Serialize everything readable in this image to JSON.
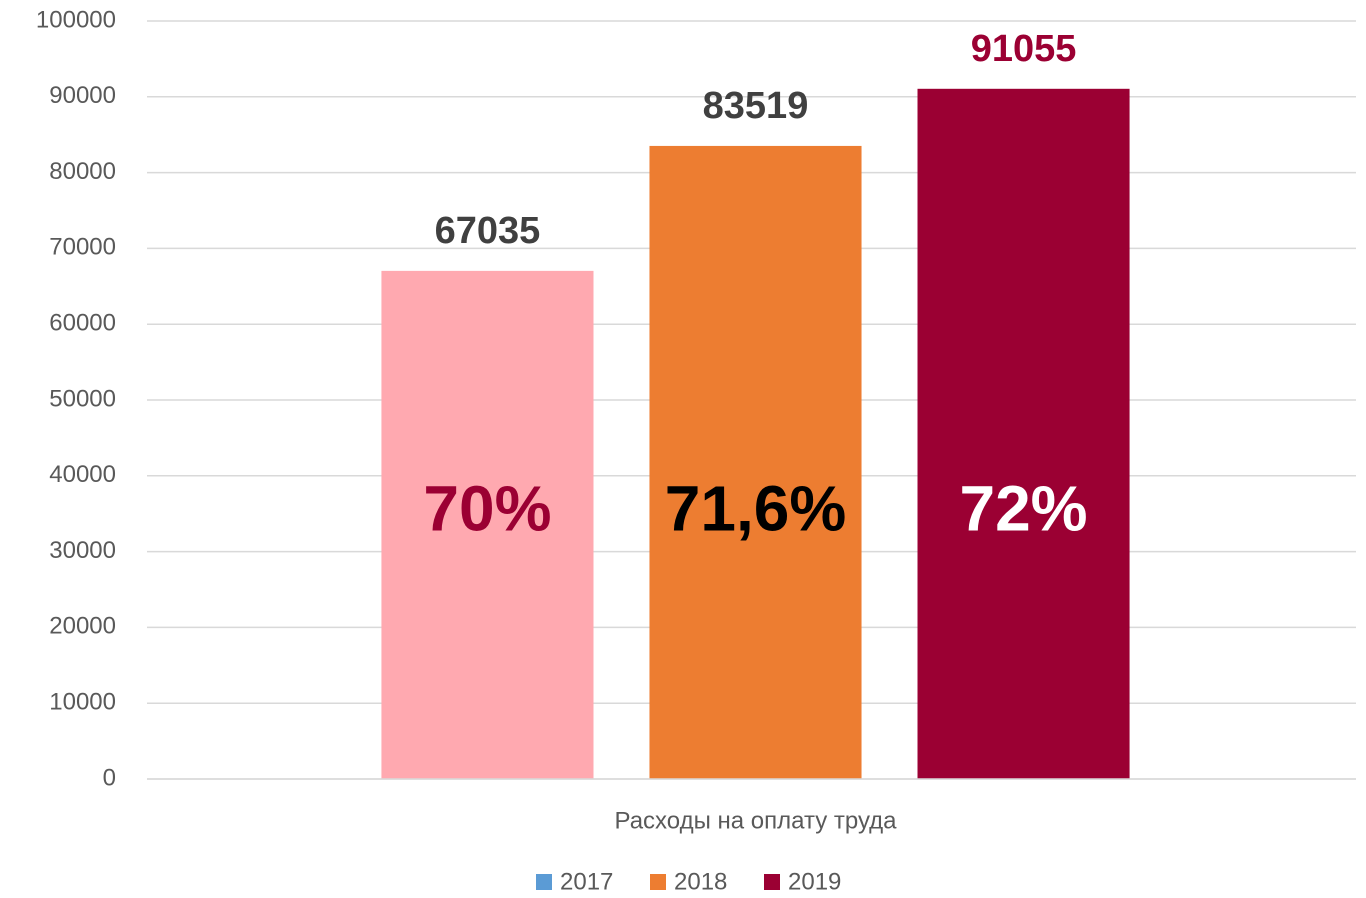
{
  "chart_data": {
    "type": "bar",
    "categories": [
      "Расходы на оплату труда"
    ],
    "series": [
      {
        "name": "2017",
        "color": "#5b9bd5",
        "bar_color": "#ffa9b0",
        "values": [
          67035
        ],
        "value_label_color": "#404040",
        "annotation": "70%",
        "annotation_color": "#9b0033"
      },
      {
        "name": "2018",
        "color": "#ed7d31",
        "bar_color": "#ed7d31",
        "values": [
          83519
        ],
        "value_label_color": "#404040",
        "annotation": "71,6%",
        "annotation_color": "#000000"
      },
      {
        "name": "2019",
        "color": "#9b0033",
        "bar_color": "#9b0033",
        "values": [
          91055
        ],
        "value_label_color": "#9b0033",
        "annotation": "72%",
        "annotation_color": "#ffffff"
      }
    ],
    "ylim": [
      0,
      100000
    ],
    "yticks": [
      0,
      10000,
      20000,
      30000,
      40000,
      50000,
      60000,
      70000,
      80000,
      90000,
      100000
    ],
    "grid": true,
    "legend": "bottom"
  }
}
